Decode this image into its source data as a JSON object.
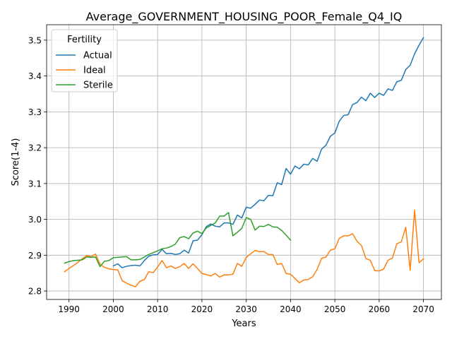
{
  "chart_data": {
    "type": "line",
    "title": "Average_GOVERNMENT_HOUSING_POOR_Female_Q4_IQ",
    "xlabel": "Years",
    "ylabel": "Score(1-4)",
    "xlim": [
      1984.95,
      2074.05
    ],
    "ylim": [
      2.7765,
      3.5431
    ],
    "xticks": [
      1990,
      2000,
      2010,
      2020,
      2030,
      2040,
      2050,
      2060,
      2070
    ],
    "yticks": [
      2.8,
      2.9,
      3.0,
      3.1,
      3.2,
      3.3,
      3.4,
      3.5
    ],
    "grid": true,
    "legend": {
      "title": "Fertility",
      "position": "top-left"
    },
    "series": [
      {
        "name": "Actual",
        "color": "#1f77b4",
        "x": [
          2000,
          2001,
          2002,
          2003,
          2004,
          2005,
          2006,
          2007,
          2008,
          2009,
          2010,
          2011,
          2012,
          2013,
          2014,
          2015,
          2016,
          2017,
          2018,
          2019,
          2020,
          2021,
          2022,
          2023,
          2024,
          2025,
          2026,
          2027,
          2028,
          2029,
          2030,
          2031,
          2032,
          2033,
          2034,
          2035,
          2036,
          2037,
          2038,
          2039,
          2040,
          2041,
          2042,
          2043,
          2044,
          2045,
          2046,
          2047,
          2048,
          2049,
          2050,
          2051,
          2052,
          2053,
          2054,
          2055,
          2056,
          2057,
          2058,
          2059,
          2060,
          2061,
          2062,
          2063,
          2064,
          2065,
          2066,
          2067,
          2068,
          2069,
          2070
        ],
        "y": [
          2.87,
          2.876,
          2.865,
          2.869,
          2.871,
          2.872,
          2.87,
          2.885,
          2.897,
          2.901,
          2.902,
          2.916,
          2.904,
          2.905,
          2.902,
          2.904,
          2.914,
          2.906,
          2.94,
          2.942,
          2.957,
          2.98,
          2.987,
          2.981,
          2.979,
          2.99,
          2.99,
          2.986,
          3.012,
          3.004,
          3.034,
          3.031,
          3.042,
          3.054,
          3.052,
          3.067,
          3.066,
          3.102,
          3.097,
          3.142,
          3.126,
          3.149,
          3.141,
          3.154,
          3.152,
          3.17,
          3.162,
          3.196,
          3.207,
          3.232,
          3.241,
          3.274,
          3.29,
          3.292,
          3.32,
          3.326,
          3.341,
          3.331,
          3.352,
          3.34,
          3.352,
          3.346,
          3.364,
          3.36,
          3.384,
          3.388,
          3.418,
          3.43,
          3.462,
          3.486,
          3.507
        ]
      },
      {
        "name": "Ideal",
        "color": "#ff7f0e",
        "x": [
          1989,
          1990,
          1991,
          1992,
          1993,
          1994,
          1995,
          1996,
          1997,
          1998,
          1999,
          2000,
          2001,
          2002,
          2003,
          2004,
          2005,
          2006,
          2007,
          2008,
          2009,
          2010,
          2011,
          2012,
          2013,
          2014,
          2015,
          2016,
          2017,
          2018,
          2019,
          2020,
          2021,
          2022,
          2023,
          2024,
          2025,
          2026,
          2027,
          2028,
          2029,
          2030,
          2031,
          2032,
          2033,
          2034,
          2035,
          2036,
          2037,
          2038,
          2039,
          2040,
          2041,
          2042,
          2043,
          2044,
          2045,
          2046,
          2047,
          2048,
          2049,
          2050,
          2051,
          2052,
          2053,
          2054,
          2055,
          2056,
          2057,
          2058,
          2059,
          2060,
          2061,
          2062,
          2063,
          2064,
          2065,
          2066,
          2067,
          2068,
          2069,
          2070
        ],
        "y": [
          2.854,
          2.863,
          2.871,
          2.88,
          2.89,
          2.899,
          2.896,
          2.903,
          2.875,
          2.866,
          2.862,
          2.86,
          2.859,
          2.829,
          2.822,
          2.816,
          2.812,
          2.827,
          2.832,
          2.854,
          2.851,
          2.867,
          2.885,
          2.865,
          2.87,
          2.863,
          2.868,
          2.877,
          2.863,
          2.876,
          2.863,
          2.849,
          2.846,
          2.842,
          2.849,
          2.839,
          2.845,
          2.845,
          2.847,
          2.877,
          2.869,
          2.894,
          2.904,
          2.913,
          2.91,
          2.91,
          2.902,
          2.902,
          2.874,
          2.877,
          2.849,
          2.847,
          2.835,
          2.823,
          2.831,
          2.832,
          2.84,
          2.86,
          2.891,
          2.895,
          2.914,
          2.918,
          2.947,
          2.954,
          2.954,
          2.96,
          2.939,
          2.927,
          2.891,
          2.886,
          2.857,
          2.856,
          2.861,
          2.886,
          2.892,
          2.932,
          2.937,
          2.978,
          2.858,
          3.026,
          2.879,
          2.89
        ]
      },
      {
        "name": "Sterile",
        "color": "#2ca02c",
        "x": [
          1989,
          1990,
          1991,
          1992,
          1993,
          1994,
          1995,
          1996,
          1997,
          1998,
          1999,
          2000,
          2001,
          2002,
          2003,
          2004,
          2005,
          2006,
          2007,
          2008,
          2009,
          2010,
          2011,
          2012,
          2013,
          2014,
          2015,
          2016,
          2017,
          2018,
          2019,
          2020,
          2021,
          2022,
          2023,
          2024,
          2025,
          2026,
          2027,
          2028,
          2029,
          2030,
          2031,
          2032,
          2033,
          2034,
          2035,
          2036,
          2037,
          2038,
          2039,
          2040
        ],
        "y": [
          2.878,
          2.882,
          2.885,
          2.886,
          2.887,
          2.895,
          2.894,
          2.895,
          2.868,
          2.883,
          2.885,
          2.893,
          2.894,
          2.895,
          2.896,
          2.887,
          2.887,
          2.888,
          2.895,
          2.902,
          2.907,
          2.912,
          2.918,
          2.92,
          2.924,
          2.931,
          2.949,
          2.952,
          2.946,
          2.962,
          2.967,
          2.96,
          2.976,
          2.983,
          2.99,
          3.009,
          3.009,
          3.019,
          2.954,
          2.964,
          2.975,
          3.005,
          3.0,
          2.97,
          2.981,
          2.98,
          2.986,
          2.979,
          2.978,
          2.969,
          2.956,
          2.942
        ]
      }
    ]
  }
}
